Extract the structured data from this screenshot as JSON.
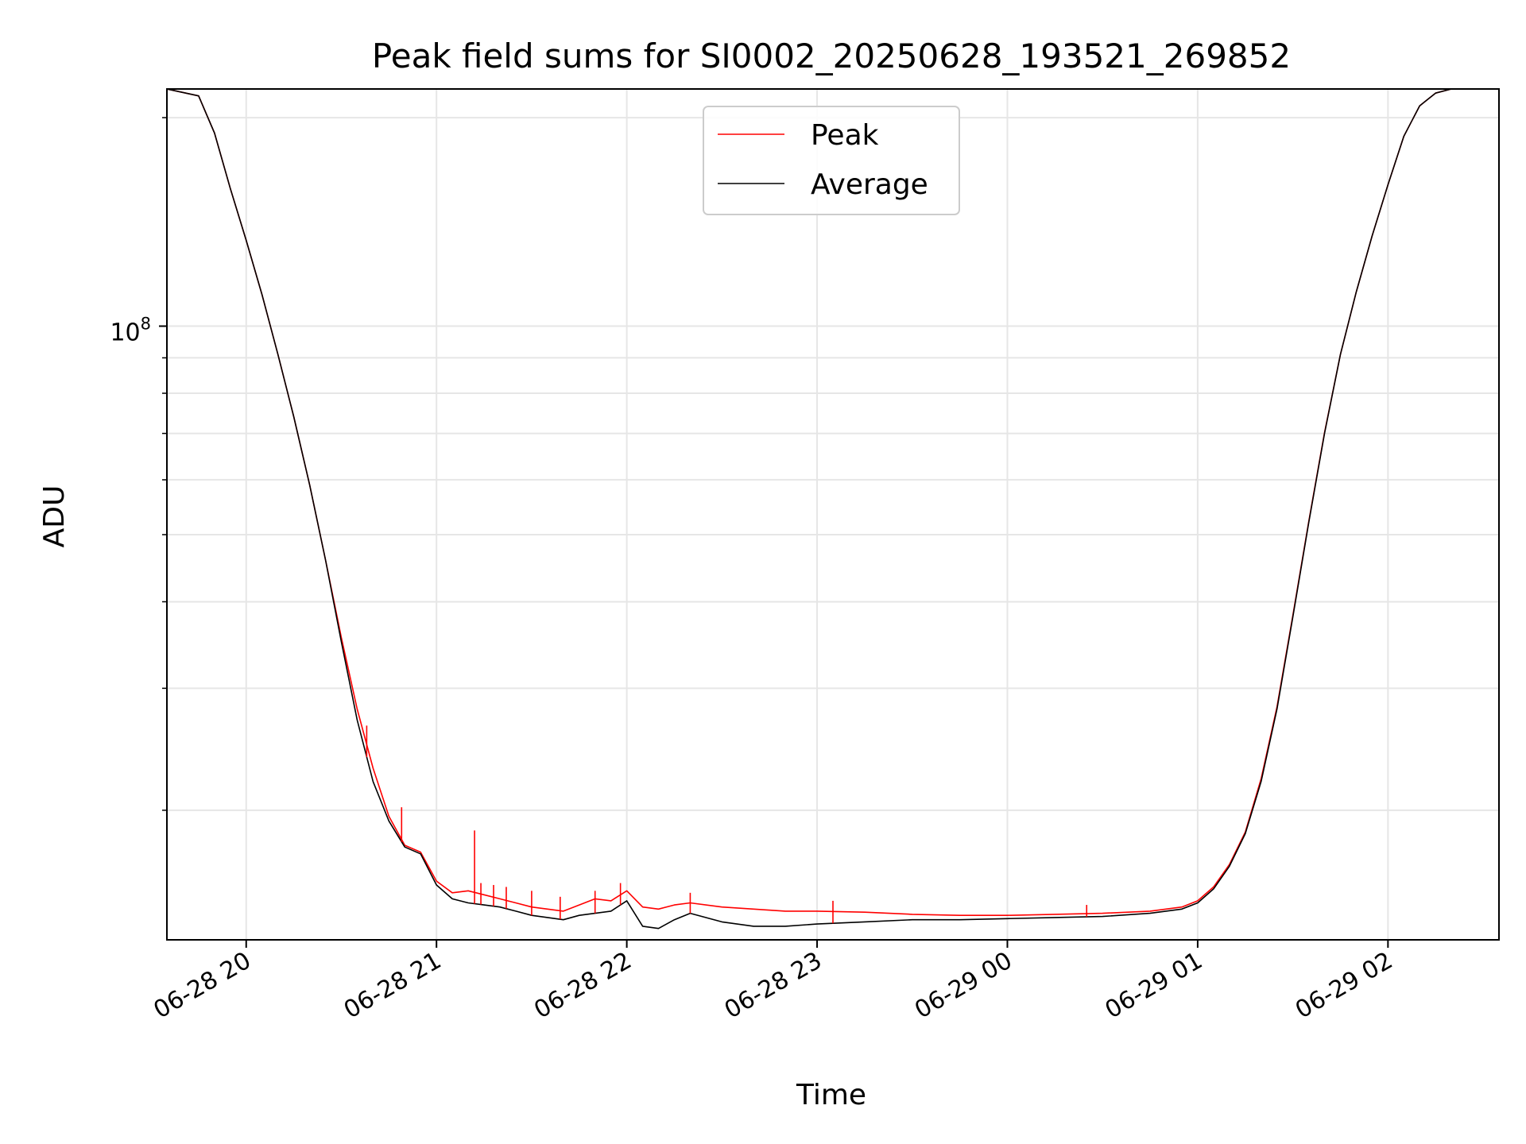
{
  "chart_data": {
    "type": "line",
    "title": "Peak field sums for SI0002_20250628_193521_269852",
    "xlabel": "Time",
    "ylabel": "ADU",
    "y_scale": "log",
    "y_tick_labels": [
      {
        "base": "10",
        "exp": "8"
      }
    ],
    "x_tick_labels": [
      "06-28 20",
      "06-28 21",
      "06-28 22",
      "06-28 23",
      "06-29 00",
      "06-29 01",
      "06-29 02"
    ],
    "xlim": [
      "2025-06-28 19:35",
      "2025-06-29 02:35"
    ],
    "ylim": [
      13000000,
      220000000
    ],
    "grid": true,
    "legend": {
      "position": "top-center",
      "entries": [
        "Peak",
        "Average"
      ]
    },
    "colors": {
      "Peak": "#ff0000",
      "Average": "#000000"
    },
    "series": [
      {
        "name": "Average",
        "x": [
          "2025-06-28 19:35",
          "2025-06-28 19:45",
          "2025-06-28 19:50",
          "2025-06-28 19:55",
          "2025-06-28 20:00",
          "2025-06-28 20:05",
          "2025-06-28 20:10",
          "2025-06-28 20:15",
          "2025-06-28 20:20",
          "2025-06-28 20:25",
          "2025-06-28 20:30",
          "2025-06-28 20:35",
          "2025-06-28 20:40",
          "2025-06-28 20:45",
          "2025-06-28 20:50",
          "2025-06-28 20:55",
          "2025-06-28 21:00",
          "2025-06-28 21:05",
          "2025-06-28 21:10",
          "2025-06-28 21:15",
          "2025-06-28 21:20",
          "2025-06-28 21:25",
          "2025-06-28 21:30",
          "2025-06-28 21:35",
          "2025-06-28 21:40",
          "2025-06-28 21:45",
          "2025-06-28 21:50",
          "2025-06-28 21:55",
          "2025-06-28 22:00",
          "2025-06-28 22:05",
          "2025-06-28 22:10",
          "2025-06-28 22:15",
          "2025-06-28 22:20",
          "2025-06-28 22:30",
          "2025-06-28 22:40",
          "2025-06-28 22:50",
          "2025-06-28 23:00",
          "2025-06-28 23:15",
          "2025-06-28 23:30",
          "2025-06-28 23:45",
          "2025-06-29 00:00",
          "2025-06-29 00:15",
          "2025-06-29 00:30",
          "2025-06-29 00:45",
          "2025-06-29 00:55",
          "2025-06-29 01:00",
          "2025-06-29 01:05",
          "2025-06-29 01:10",
          "2025-06-29 01:15",
          "2025-06-29 01:20",
          "2025-06-29 01:25",
          "2025-06-29 01:30",
          "2025-06-29 01:35",
          "2025-06-29 01:40",
          "2025-06-29 01:45",
          "2025-06-29 01:50",
          "2025-06-29 01:55",
          "2025-06-29 02:00",
          "2025-06-29 02:05",
          "2025-06-29 02:10",
          "2025-06-29 02:15",
          "2025-06-29 02:20",
          "2025-06-29 02:25",
          "2025-06-29 02:35"
        ],
        "y": [
          220000000,
          215000000,
          190000000,
          158000000,
          133000000,
          111000000,
          91000000,
          74000000,
          59000000,
          46000000,
          35000000,
          27000000,
          22000000,
          19300000,
          17700000,
          17300000,
          15600000,
          14900000,
          14700000,
          14600000,
          14500000,
          14300000,
          14100000,
          14000000,
          13900000,
          14100000,
          14200000,
          14300000,
          14800000,
          13600000,
          13500000,
          13900000,
          14200000,
          13800000,
          13600000,
          13600000,
          13700000,
          13800000,
          13900000,
          13900000,
          13950000,
          14000000,
          14050000,
          14200000,
          14400000,
          14700000,
          15400000,
          16600000,
          18500000,
          22000000,
          28000000,
          38000000,
          52000000,
          70000000,
          91000000,
          112000000,
          135000000,
          160000000,
          188000000,
          208000000,
          217000000,
          220000000,
          220000000,
          220000000
        ]
      },
      {
        "name": "Peak",
        "x": [
          "2025-06-28 19:35",
          "2025-06-28 19:45",
          "2025-06-28 19:50",
          "2025-06-28 19:55",
          "2025-06-28 20:00",
          "2025-06-28 20:05",
          "2025-06-28 20:10",
          "2025-06-28 20:15",
          "2025-06-28 20:20",
          "2025-06-28 20:25",
          "2025-06-28 20:30",
          "2025-06-28 20:35",
          "2025-06-28 20:40",
          "2025-06-28 20:45",
          "2025-06-28 20:50",
          "2025-06-28 20:55",
          "2025-06-28 21:00",
          "2025-06-28 21:05",
          "2025-06-28 21:10",
          "2025-06-28 21:15",
          "2025-06-28 21:20",
          "2025-06-28 21:25",
          "2025-06-28 21:30",
          "2025-06-28 21:35",
          "2025-06-28 21:40",
          "2025-06-28 21:45",
          "2025-06-28 21:50",
          "2025-06-28 21:55",
          "2025-06-28 22:00",
          "2025-06-28 22:05",
          "2025-06-28 22:10",
          "2025-06-28 22:15",
          "2025-06-28 22:20",
          "2025-06-28 22:30",
          "2025-06-28 22:40",
          "2025-06-28 22:50",
          "2025-06-28 23:00",
          "2025-06-28 23:15",
          "2025-06-28 23:30",
          "2025-06-28 23:45",
          "2025-06-29 00:00",
          "2025-06-29 00:15",
          "2025-06-29 00:30",
          "2025-06-29 00:45",
          "2025-06-29 00:55",
          "2025-06-29 01:00",
          "2025-06-29 01:05",
          "2025-06-29 01:10",
          "2025-06-29 01:15",
          "2025-06-29 01:20",
          "2025-06-29 01:25",
          "2025-06-29 01:30",
          "2025-06-29 01:35",
          "2025-06-29 01:40",
          "2025-06-29 01:45",
          "2025-06-29 01:50",
          "2025-06-29 01:55",
          "2025-06-29 02:00",
          "2025-06-29 02:05",
          "2025-06-29 02:10",
          "2025-06-29 02:15",
          "2025-06-29 02:20",
          "2025-06-29 02:25",
          "2025-06-29 02:35"
        ],
        "y": [
          220000000,
          215000000,
          190000000,
          158000000,
          133000000,
          111000000,
          91000000,
          74000000,
          59000000,
          46000000,
          35500000,
          28000000,
          23000000,
          19600000,
          17800000,
          17400000,
          15800000,
          15200000,
          15300000,
          15100000,
          14900000,
          14700000,
          14500000,
          14400000,
          14300000,
          14600000,
          14900000,
          14800000,
          15300000,
          14500000,
          14400000,
          14600000,
          14700000,
          14500000,
          14400000,
          14300000,
          14300000,
          14250000,
          14150000,
          14100000,
          14100000,
          14150000,
          14200000,
          14300000,
          14500000,
          14800000,
          15500000,
          16700000,
          18600000,
          22200000,
          28200000,
          38200000,
          52200000,
          70200000,
          91000000,
          112000000,
          135000000,
          160000000,
          188000000,
          208000000,
          217000000,
          220000000,
          220000000,
          220000000
        ]
      }
    ],
    "peak_spikes": {
      "x": [
        "2025-06-28 20:38",
        "2025-06-28 20:49",
        "2025-06-28 21:12",
        "2025-06-28 21:14",
        "2025-06-28 21:18",
        "2025-06-28 21:22",
        "2025-06-28 21:30",
        "2025-06-28 21:39",
        "2025-06-28 21:50",
        "2025-06-28 21:58",
        "2025-06-28 22:20",
        "2025-06-28 23:05",
        "2025-06-29 00:25"
      ],
      "y": [
        26500000,
        20200000,
        18700000,
        15700000,
        15600000,
        15500000,
        15300000,
        15000000,
        15300000,
        15700000,
        15200000,
        14800000,
        14600000
      ]
    }
  }
}
